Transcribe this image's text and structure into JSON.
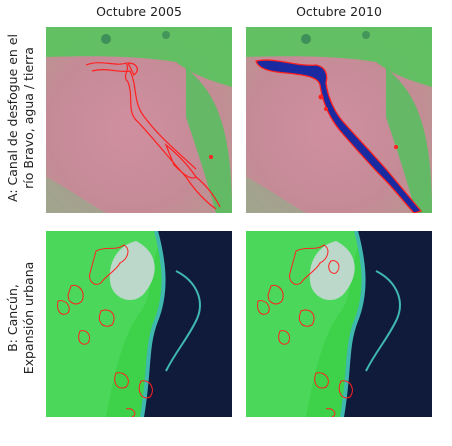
{
  "columns": {
    "left": "Octubre 2005",
    "right": "Octubre 2010"
  },
  "rows": {
    "a_line1": "A: Canal de desfogue en el",
    "a_line2": "río Bravo, agua / tierra",
    "b_line1": "B: Cancún,",
    "b_line2": "Expansión urbana"
  },
  "colors": {
    "bare_soil": "#c98f9a",
    "vegetation": "#3ed24a",
    "water": "#101a3a",
    "outline": "#ff2020",
    "water_fill": "#1a2aa0"
  }
}
